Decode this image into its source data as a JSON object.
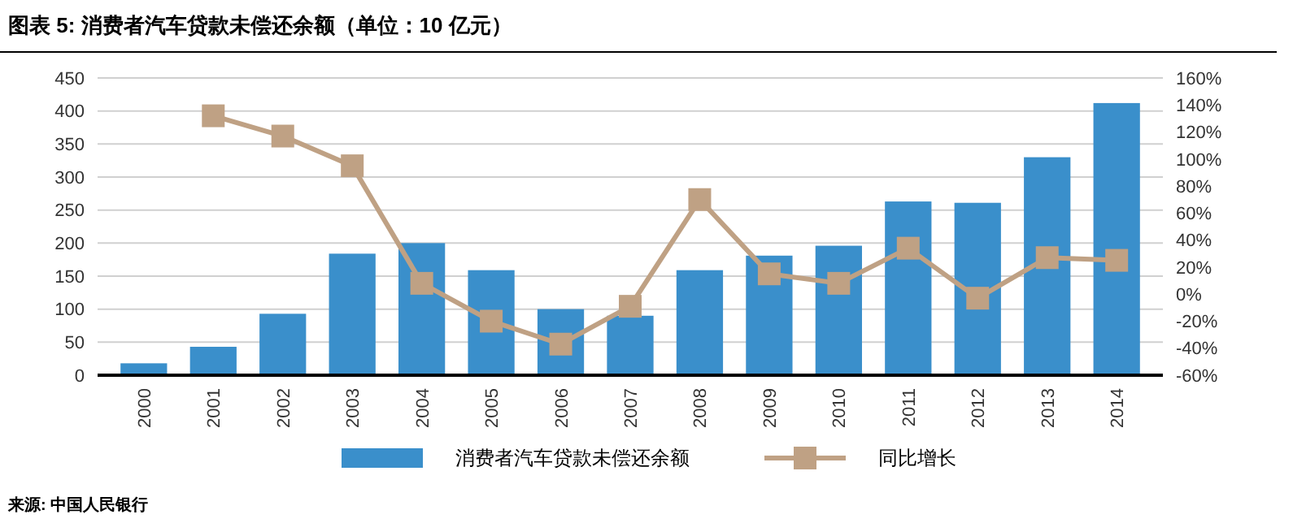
{
  "chart_data": {
    "type": "bar",
    "title": "图表 5: 消费者汽车贷款未偿还余额（单位：10 亿元）",
    "categories": [
      "2000",
      "2001",
      "2002",
      "2003",
      "2004",
      "2005",
      "2006",
      "2007",
      "2008",
      "2009",
      "2010",
      "2011",
      "2012",
      "2013",
      "2014"
    ],
    "series": [
      {
        "name": "消费者汽车贷款未偿还余额",
        "color": "#3a8fcb",
        "values": [
          18,
          43,
          93,
          184,
          200,
          159,
          100,
          90,
          159,
          181,
          196,
          263,
          261,
          330,
          412
        ]
      },
      {
        "name": "同比增长",
        "type": "line",
        "axis": "y2",
        "color": "#bfa184",
        "marker": "square",
        "values": [
          null,
          132,
          117,
          95,
          8,
          -20,
          -37,
          -9,
          70,
          15,
          8,
          34,
          -3,
          27,
          25
        ]
      }
    ],
    "ylim": [
      0,
      450
    ],
    "yticks": [
      0,
      50,
      100,
      150,
      200,
      250,
      300,
      350,
      400,
      450
    ],
    "y2lim": [
      -60,
      160
    ],
    "y2ticks": [
      {
        "value": -60,
        "label": "-60%"
      },
      {
        "value": -40,
        "label": "-40%"
      },
      {
        "value": -20,
        "label": "-20%"
      },
      {
        "value": 0,
        "label": "0%"
      },
      {
        "value": 20,
        "label": "20%"
      },
      {
        "value": 40,
        "label": "40%"
      },
      {
        "value": 60,
        "label": "60%"
      },
      {
        "value": 80,
        "label": "80%"
      },
      {
        "value": 100,
        "label": "100%"
      },
      {
        "value": 120,
        "label": "120%"
      },
      {
        "value": 140,
        "label": "140%"
      },
      {
        "value": 160,
        "label": "160%"
      }
    ],
    "grid": "y",
    "legend": "bottom",
    "annotations": [
      "来源: 中国人民银行"
    ]
  }
}
